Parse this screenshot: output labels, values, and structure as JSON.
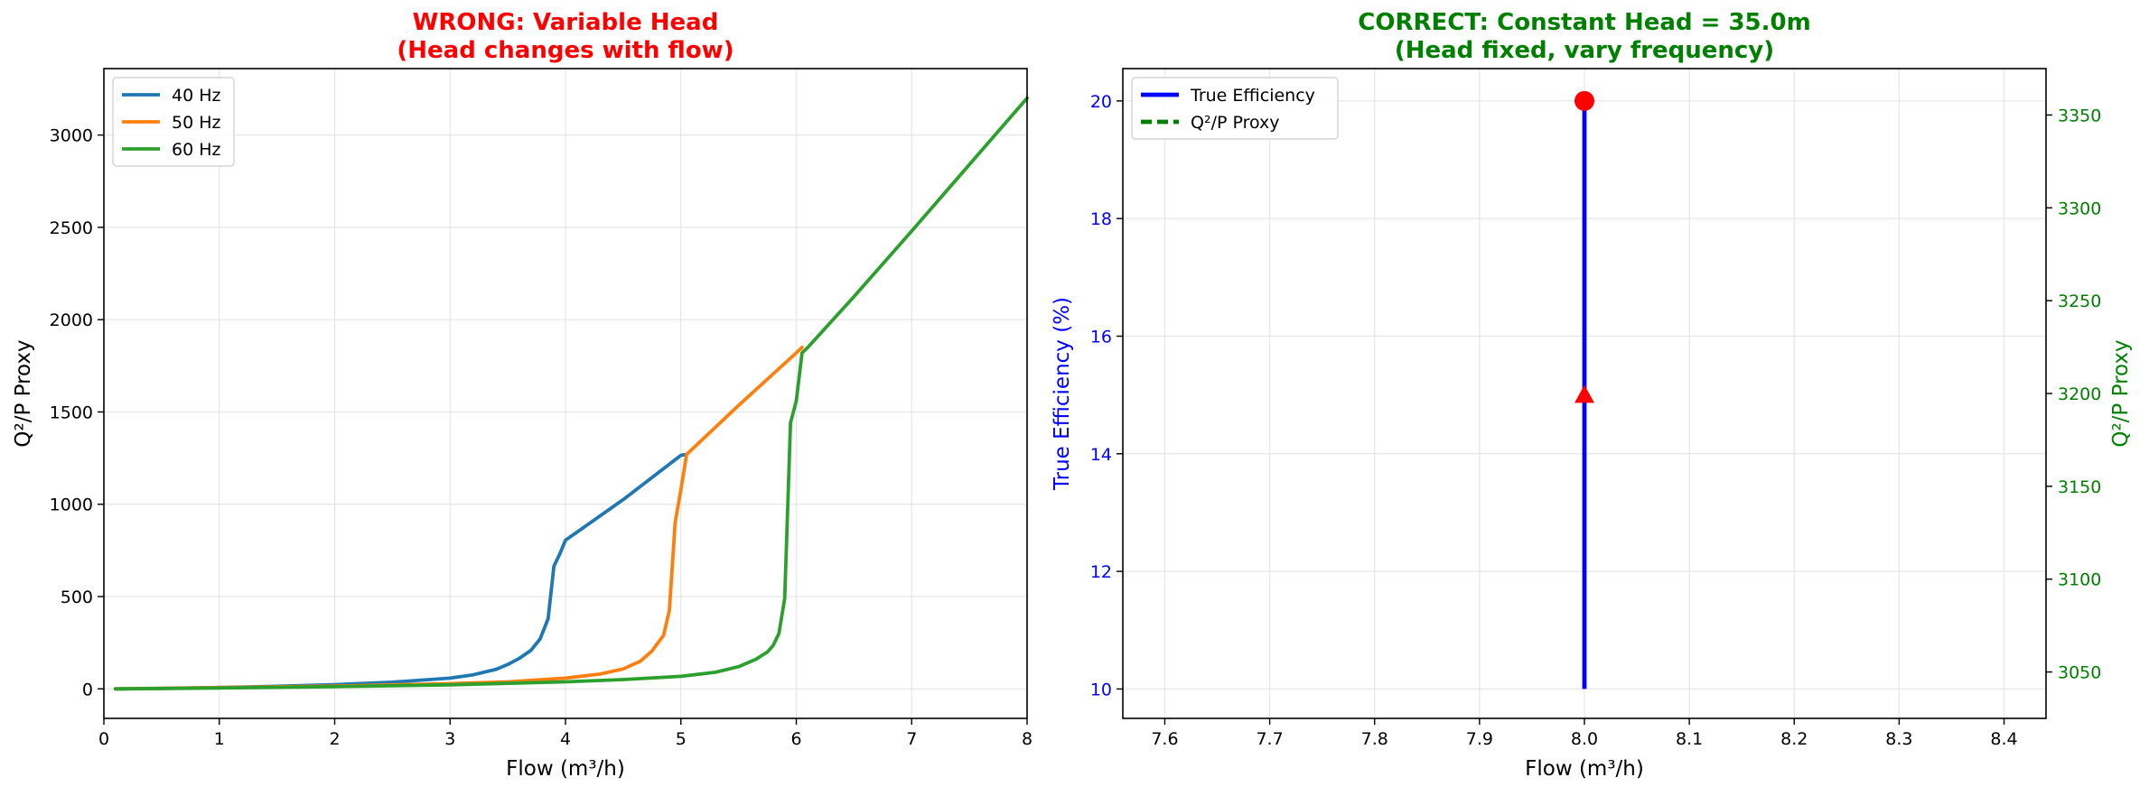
{
  "chart_data": [
    {
      "type": "line",
      "title_line1": "WRONG: Variable Head",
      "title_line2": "(Head changes with flow)",
      "title_color": "#ff0000",
      "xlabel": "Flow (m³/h)",
      "ylabel": "Q²/P Proxy",
      "xlim": [
        0,
        8
      ],
      "ylim": [
        -160,
        3360
      ],
      "xticks": [
        0,
        1,
        2,
        3,
        4,
        5,
        6,
        7,
        8
      ],
      "yticks": [
        0,
        500,
        1000,
        1500,
        2000,
        2500,
        3000
      ],
      "grid": true,
      "legend_position": "upper-left",
      "series": [
        {
          "name": "40 Hz",
          "color": "#1f77b4",
          "x": [
            0.1,
            0.5,
            1.0,
            1.5,
            2.0,
            2.5,
            3.0,
            3.2,
            3.4,
            3.5,
            3.6,
            3.7,
            3.78,
            3.85,
            3.9,
            3.95,
            4.0,
            4.5,
            5.0,
            5.05
          ],
          "y": [
            0,
            2,
            7,
            14,
            23,
            36,
            58,
            76,
            106,
            132,
            165,
            208,
            270,
            380,
            665,
            730,
            805,
            1025,
            1265,
            1270
          ]
        },
        {
          "name": "50 Hz",
          "color": "#ff7f0e",
          "x": [
            0.1,
            1.0,
            2.0,
            3.0,
            3.5,
            4.0,
            4.3,
            4.5,
            4.65,
            4.75,
            4.85,
            4.9,
            4.95,
            5.0,
            5.05,
            5.5,
            6.0,
            6.05
          ],
          "y": [
            0,
            7,
            15,
            28,
            38,
            58,
            80,
            108,
            150,
            205,
            290,
            425,
            900,
            1080,
            1270,
            1535,
            1820,
            1850
          ]
        },
        {
          "name": "60 Hz",
          "color": "#2ca02c",
          "x": [
            0.1,
            1.0,
            2.0,
            3.0,
            4.0,
            4.5,
            5.0,
            5.3,
            5.5,
            5.65,
            5.75,
            5.8,
            5.85,
            5.9,
            5.95,
            6.0,
            6.05,
            6.1,
            6.5,
            7.0,
            7.5,
            8.0
          ],
          "y": [
            0,
            5,
            12,
            22,
            38,
            50,
            68,
            90,
            120,
            160,
            200,
            235,
            300,
            490,
            1440,
            1560,
            1820,
            1850,
            2125,
            2480,
            2840,
            3200
          ]
        }
      ]
    },
    {
      "type": "line",
      "title_line1": "CORRECT: Constant Head = 35.0m",
      "title_line2": "(Head fixed, vary frequency)",
      "title_color": "#008000",
      "xlabel": "Flow (m³/h)",
      "ylabel": "True Efficiency (%)",
      "ylabel_color": "#0000ff",
      "y2label": "Q²/P Proxy",
      "y2label_color": "#008000",
      "xlim": [
        7.56,
        8.44
      ],
      "ylim": [
        9.5,
        20.55
      ],
      "y2lim": [
        3025,
        3375
      ],
      "xticks": [
        7.6,
        7.7,
        7.8,
        7.9,
        8.0,
        8.1,
        8.2,
        8.3,
        8.4
      ],
      "yticks": [
        10,
        12,
        14,
        16,
        18,
        20
      ],
      "y2ticks": [
        3050,
        3100,
        3150,
        3200,
        3250,
        3300,
        3350
      ],
      "grid": true,
      "legend_position": "upper-left",
      "series": [
        {
          "name": "True Efficiency",
          "color": "#0000ff",
          "style": "solid",
          "axis": "left",
          "x": [
            8.0,
            8.0
          ],
          "y": [
            10.0,
            20.0
          ]
        },
        {
          "name": "Q²/P Proxy",
          "color": "#008000",
          "style": "dashed",
          "axis": "right",
          "x": [],
          "y": []
        }
      ],
      "markers": [
        {
          "shape": "circle",
          "color": "#ff0000",
          "x": 8.0,
          "y": 20.0
        },
        {
          "shape": "triangle",
          "color": "#ff0000",
          "x": 8.0,
          "y": 15.0
        }
      ]
    }
  ]
}
